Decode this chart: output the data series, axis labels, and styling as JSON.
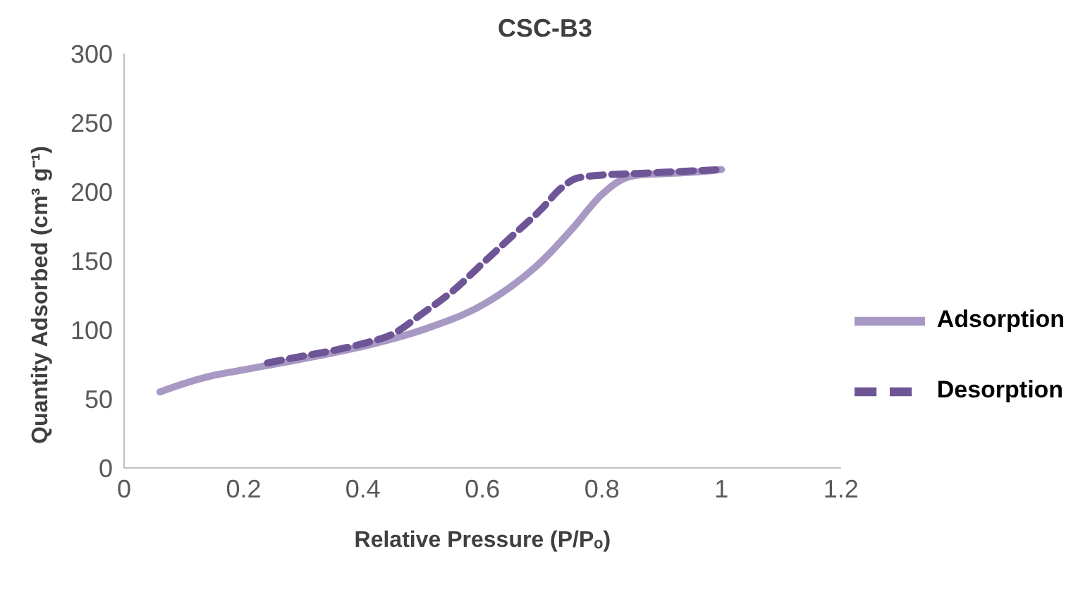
{
  "chart_data": {
    "type": "line",
    "title": "CSC-B3",
    "xlabel": "Relative Pressure (P/Pₒ)",
    "ylabel": "Quantity Adsorbed (cm³ g⁻¹)",
    "xlim": [
      0,
      1.2
    ],
    "xticks": [
      0,
      0.2,
      0.4,
      0.6,
      0.8,
      1,
      1.2
    ],
    "ylim": [
      0,
      300
    ],
    "yticks": [
      0,
      50,
      100,
      150,
      200,
      250,
      300
    ],
    "grid": false,
    "legend": "right",
    "marker": "none",
    "series": [
      {
        "name": "Adsorption",
        "color": "#a899c4",
        "line_style": "solid",
        "x": [
          0.06,
          0.1,
          0.15,
          0.2,
          0.3,
          0.4,
          0.5,
          0.6,
          0.65,
          0.7,
          0.75,
          0.8,
          0.83,
          0.86,
          0.9,
          0.95,
          1.0
        ],
        "values": [
          55,
          61,
          67,
          71,
          79,
          88,
          100,
          118,
          132,
          150,
          173,
          198,
          208,
          212,
          213,
          214,
          216
        ]
      },
      {
        "name": "Desorption",
        "color": "#6e5596",
        "line_style": "dashed",
        "x": [
          0.24,
          0.3,
          0.35,
          0.4,
          0.45,
          0.5,
          0.55,
          0.6,
          0.65,
          0.7,
          0.73,
          0.76,
          0.8,
          0.85,
          0.9,
          0.95,
          1.0
        ],
        "values": [
          76,
          81,
          85,
          90,
          97,
          112,
          128,
          148,
          168,
          188,
          202,
          210,
          212,
          213,
          214,
          215,
          216
        ]
      }
    ]
  }
}
